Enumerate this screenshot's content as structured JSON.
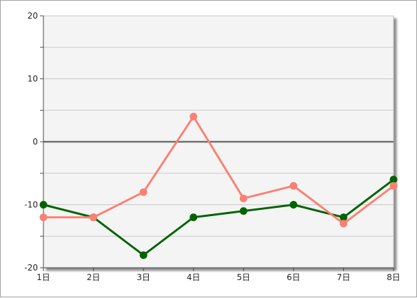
{
  "chart_data": {
    "type": "line",
    "title": "",
    "xlabel": "",
    "ylabel": "",
    "categories": [
      "1日",
      "2日",
      "3日",
      "4日",
      "5日",
      "6日",
      "7日",
      "8日"
    ],
    "ylim": [
      -20,
      20
    ],
    "y_ticks": [
      "20",
      "10",
      "0",
      "-10",
      "-20"
    ],
    "y_tick_values": [
      20,
      10,
      0,
      -10,
      -20
    ],
    "y_minor_step": 5,
    "grid": true,
    "legend": "none",
    "background_color": "#f4f4f4",
    "zero_line_color": "#6e6e6e",
    "series": [
      {
        "color": "#006400",
        "values": [
          -10,
          -12,
          -18,
          -12,
          -11,
          -10,
          -12,
          -6
        ]
      },
      {
        "color": "#fa8072",
        "values": [
          -12,
          -12,
          -8,
          4,
          -9,
          -7,
          -13,
          -7
        ]
      }
    ]
  }
}
